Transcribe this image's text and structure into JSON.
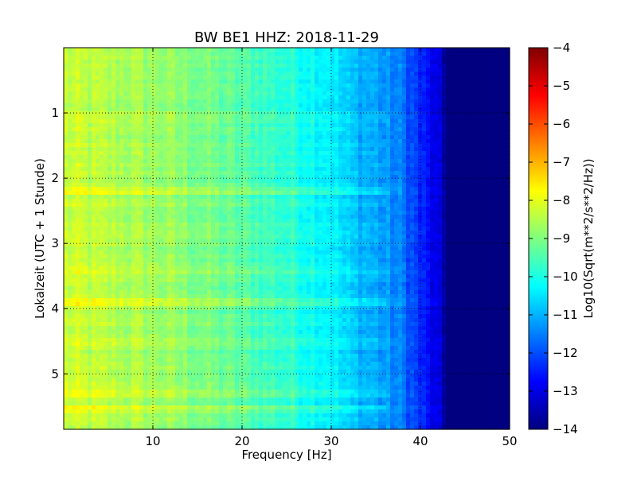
{
  "chart_data": {
    "type": "heatmap",
    "title": "BW BE1 HHZ: 2018-11-29",
    "xlabel": "Frequency [Hz]",
    "ylabel": "Lokalzeit (UTC + 1 Stunde)",
    "xlim": [
      0,
      50
    ],
    "ylim": [
      5.85,
      0
    ],
    "x_ticks": [
      "10",
      "20",
      "30",
      "40",
      "50"
    ],
    "y_ticks": [
      "1",
      "2",
      "3",
      "4",
      "5"
    ],
    "grid": true,
    "colormap": "jet",
    "colorbar": {
      "label": "Log10(Sqrt(m**2/s**2/Hz))",
      "range": [
        -14,
        -4
      ],
      "ticks": [
        "-4",
        "-5",
        "-6",
        "-7",
        "-8",
        "-9",
        "-10",
        "-11",
        "-12",
        "-13",
        "-14"
      ]
    },
    "frequency_profile": {
      "x": [
        0,
        5,
        10,
        15,
        20,
        25,
        30,
        32,
        35,
        38,
        40,
        42,
        43,
        45,
        50
      ],
      "value": [
        -8.3,
        -8.5,
        -8.7,
        -9.0,
        -9.4,
        -9.8,
        -10.3,
        -10.8,
        -11.1,
        -11.6,
        -12.4,
        -13.2,
        -14.0,
        -14.0,
        -14.0
      ]
    },
    "time_events": [
      {
        "time": 2.2,
        "delta": 0.4
      },
      {
        "time": 3.4,
        "delta": 0.3
      },
      {
        "time": 3.9,
        "delta": 0.5
      },
      {
        "time": 4.5,
        "delta": 0.3
      },
      {
        "time": 5.3,
        "delta": 0.5
      },
      {
        "time": 5.55,
        "delta": 0.4
      }
    ]
  }
}
